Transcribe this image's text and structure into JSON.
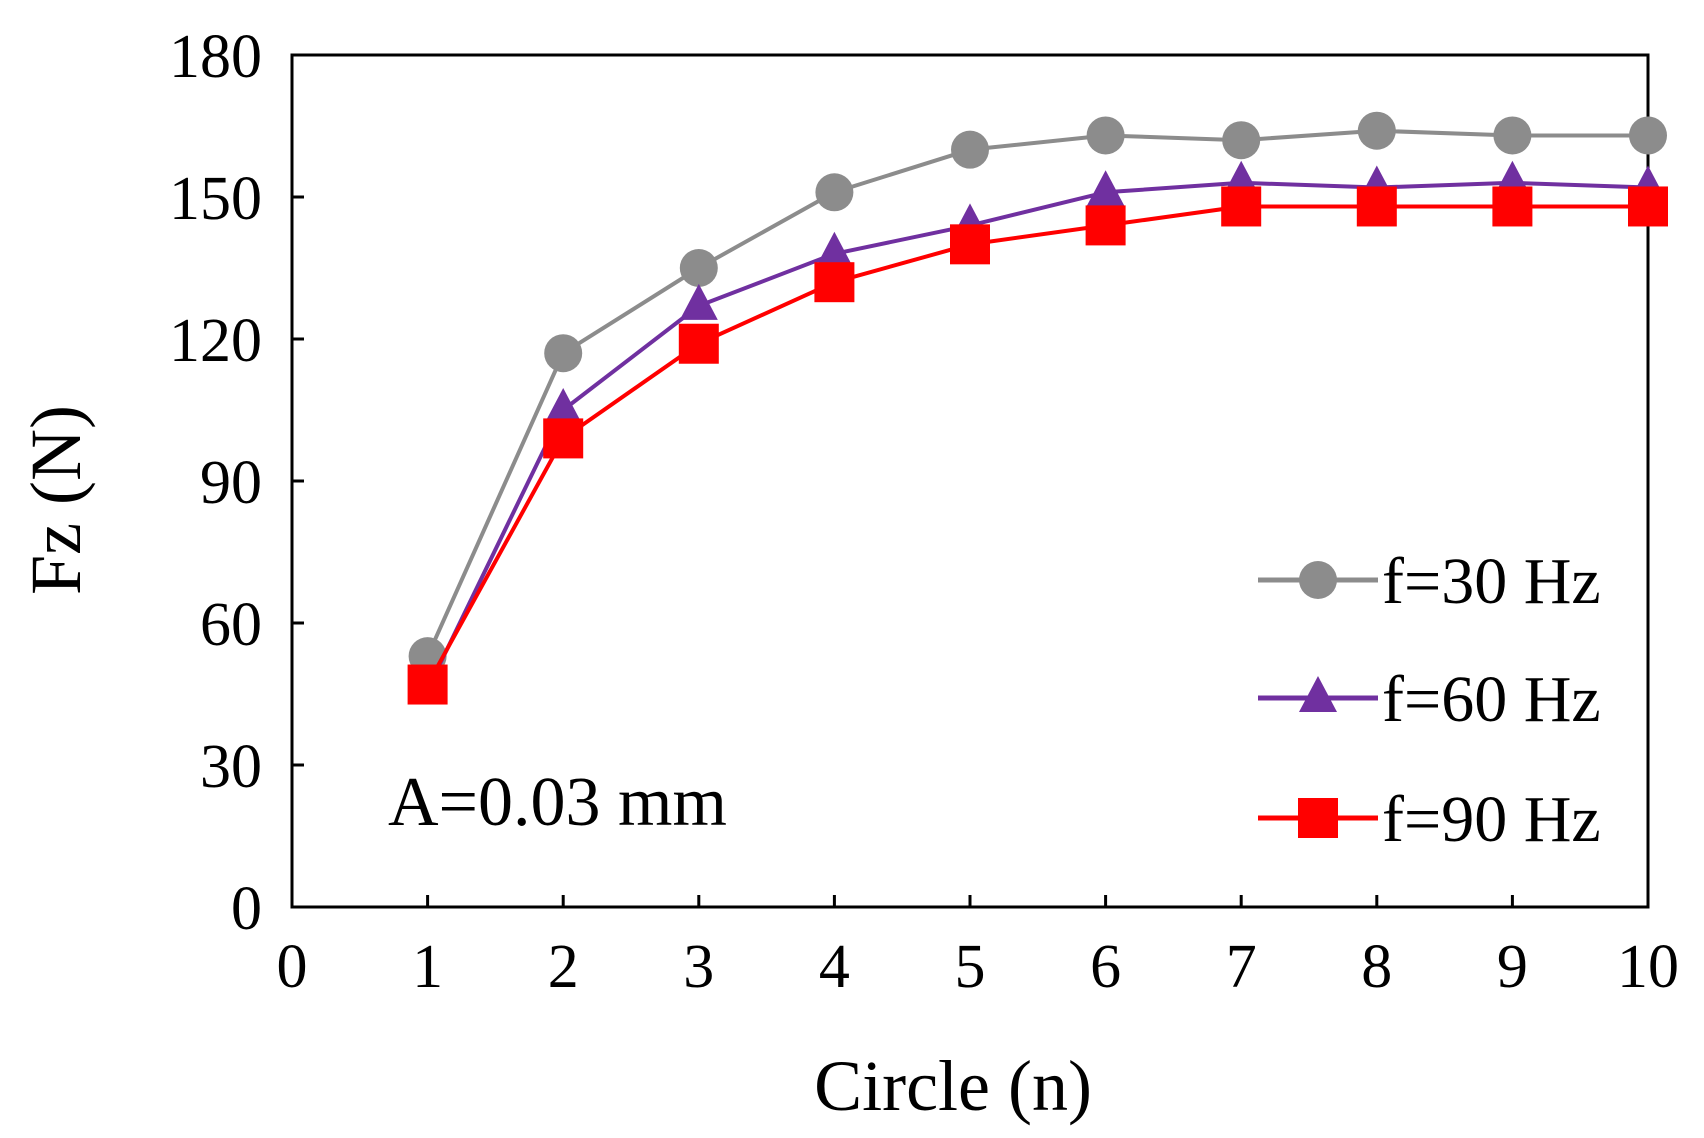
{
  "chart_data": {
    "type": "line",
    "title": "",
    "xlabel": "Circle (n)",
    "ylabel": "Fz (N)",
    "xlim": [
      0,
      10
    ],
    "ylim": [
      0,
      180
    ],
    "xticks": [
      0,
      1,
      2,
      3,
      4,
      5,
      6,
      7,
      8,
      9,
      10
    ],
    "yticks": [
      0,
      30,
      60,
      90,
      120,
      150,
      180
    ],
    "grid": false,
    "legend_position": "bottom-right",
    "annotation": "A=0.03 mm",
    "x": [
      1,
      2,
      3,
      4,
      5,
      6,
      7,
      8,
      9,
      10
    ],
    "series": [
      {
        "name": "f=30 Hz",
        "color": "#8c8c8c",
        "marker": "circle",
        "values": [
          53,
          117,
          135,
          151,
          160,
          163,
          162,
          164,
          163,
          163
        ]
      },
      {
        "name": "f=60 Hz",
        "color": "#7030a0",
        "marker": "triangle",
        "values": [
          46,
          105,
          127,
          138,
          144,
          151,
          153,
          152,
          153,
          152
        ]
      },
      {
        "name": "f=90 Hz",
        "color": "#ff0000",
        "marker": "square",
        "values": [
          47,
          99,
          119,
          132,
          140,
          144,
          148,
          148,
          148,
          148
        ]
      }
    ]
  }
}
